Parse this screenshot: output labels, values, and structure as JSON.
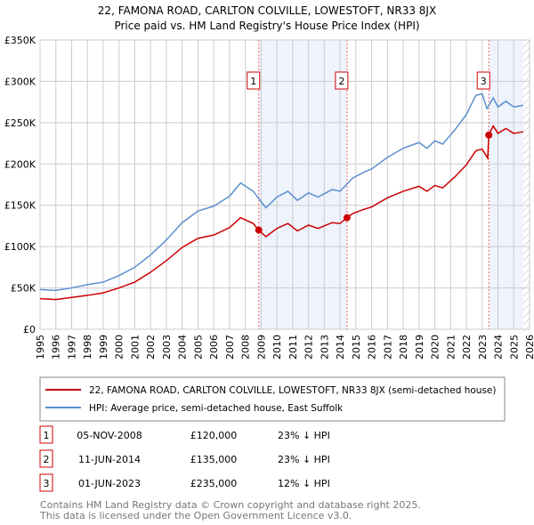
{
  "chart_data": {
    "type": "line",
    "title": "22, FAMONA ROAD, CARLTON COLVILLE, LOWESTOFT, NR33 8JX",
    "subtitle": "Price paid vs. HM Land Registry's House Price Index (HPI)",
    "xlim": [
      1995,
      2026
    ],
    "ylim": [
      0,
      350000
    ],
    "grid": true,
    "y_ticks": [
      0,
      50000,
      100000,
      150000,
      200000,
      250000,
      300000,
      350000
    ],
    "y_tick_labels": [
      "£0",
      "£50K",
      "£100K",
      "£150K",
      "£200K",
      "£250K",
      "£300K",
      "£350K"
    ],
    "x_ticks": [
      "1995",
      "1996",
      "1997",
      "1998",
      "1999",
      "2000",
      "2001",
      "2002",
      "2003",
      "2004",
      "2005",
      "2006",
      "2007",
      "2008",
      "2009",
      "2010",
      "2011",
      "2012",
      "2013",
      "2014",
      "2015",
      "2016",
      "2017",
      "2018",
      "2019",
      "2020",
      "2021",
      "2022",
      "2023",
      "2024",
      "2025",
      "2026"
    ],
    "series": [
      {
        "name": "22, FAMONA ROAD, CARLTON COLVILLE, LOWESTOFT, NR33 8JX (semi-detached house)",
        "color": "#cc0000",
        "x": [
          1995,
          1996,
          1997,
          1998,
          1999,
          2000,
          2001,
          2002,
          2003,
          2004,
          2005,
          2006,
          2007,
          2007.7,
          2008.5,
          2008.85,
          2009.3,
          2010,
          2010.7,
          2011.3,
          2012,
          2012.6,
          2013.5,
          2014,
          2014.44,
          2014.8,
          2015.5,
          2016,
          2017,
          2018,
          2019,
          2019.5,
          2020,
          2020.5,
          2021.3,
          2022,
          2022.6,
          2023,
          2023.35,
          2023.42,
          2023.7,
          2024,
          2024.5,
          2025,
          2025.6
        ],
        "y": [
          37000,
          36000,
          38500,
          41000,
          44000,
          50000,
          57000,
          69000,
          83000,
          99000,
          110000,
          114000,
          123000,
          135000,
          128000,
          120000,
          112000,
          122000,
          128000,
          119000,
          126000,
          122000,
          129000,
          128000,
          135000,
          140000,
          145000,
          148000,
          159000,
          167000,
          173000,
          167000,
          174000,
          171000,
          185000,
          199000,
          216000,
          218000,
          207000,
          235000,
          246000,
          237000,
          243000,
          237000,
          239000
        ]
      },
      {
        "name": "HPI: Average price, semi-detached house, East Suffolk",
        "color": "#5b8fd0",
        "x": [
          1995,
          1996,
          1997,
          1998,
          1999,
          2000,
          2001,
          2002,
          2003,
          2004,
          2005,
          2006,
          2007,
          2007.7,
          2008.5,
          2009.3,
          2010,
          2010.7,
          2011.3,
          2012,
          2012.6,
          2013.5,
          2014,
          2014.8,
          2015.5,
          2016,
          2017,
          2018,
          2019,
          2019.5,
          2020,
          2020.5,
          2021.3,
          2022,
          2022.6,
          2023,
          2023.3,
          2023.7,
          2024,
          2024.5,
          2025,
          2025.6
        ],
        "y": [
          48000,
          47000,
          50000,
          54000,
          57000,
          65000,
          75000,
          90000,
          108000,
          129000,
          143000,
          149000,
          161000,
          177000,
          167000,
          147000,
          160000,
          167000,
          156000,
          165000,
          160000,
          169000,
          167000,
          183000,
          190000,
          194000,
          208000,
          219000,
          226000,
          219000,
          228000,
          224000,
          242000,
          260000,
          283000,
          285000,
          267000,
          280000,
          269000,
          276000,
          269000,
          271000
        ]
      }
    ],
    "sales": [
      {
        "label": "1",
        "x": 2008.85,
        "y": 120000,
        "date": "05-NOV-2008",
        "price": "£120,000",
        "hpi": "23% ↓ HPI"
      },
      {
        "label": "2",
        "x": 2014.44,
        "y": 135000,
        "date": "11-JUN-2014",
        "price": "£135,000",
        "hpi": "23% ↓ HPI"
      },
      {
        "label": "3",
        "x": 2023.42,
        "y": 235000,
        "date": "01-JUN-2023",
        "price": "£235,000",
        "hpi": "12% ↓ HPI"
      }
    ],
    "forecast_start": 2025.6,
    "legend_placement": "below"
  },
  "footer": {
    "line1": "Contains HM Land Registry data © Crown copyright and database right 2025.",
    "line2": "This data is licensed under the Open Government Licence v3.0."
  }
}
